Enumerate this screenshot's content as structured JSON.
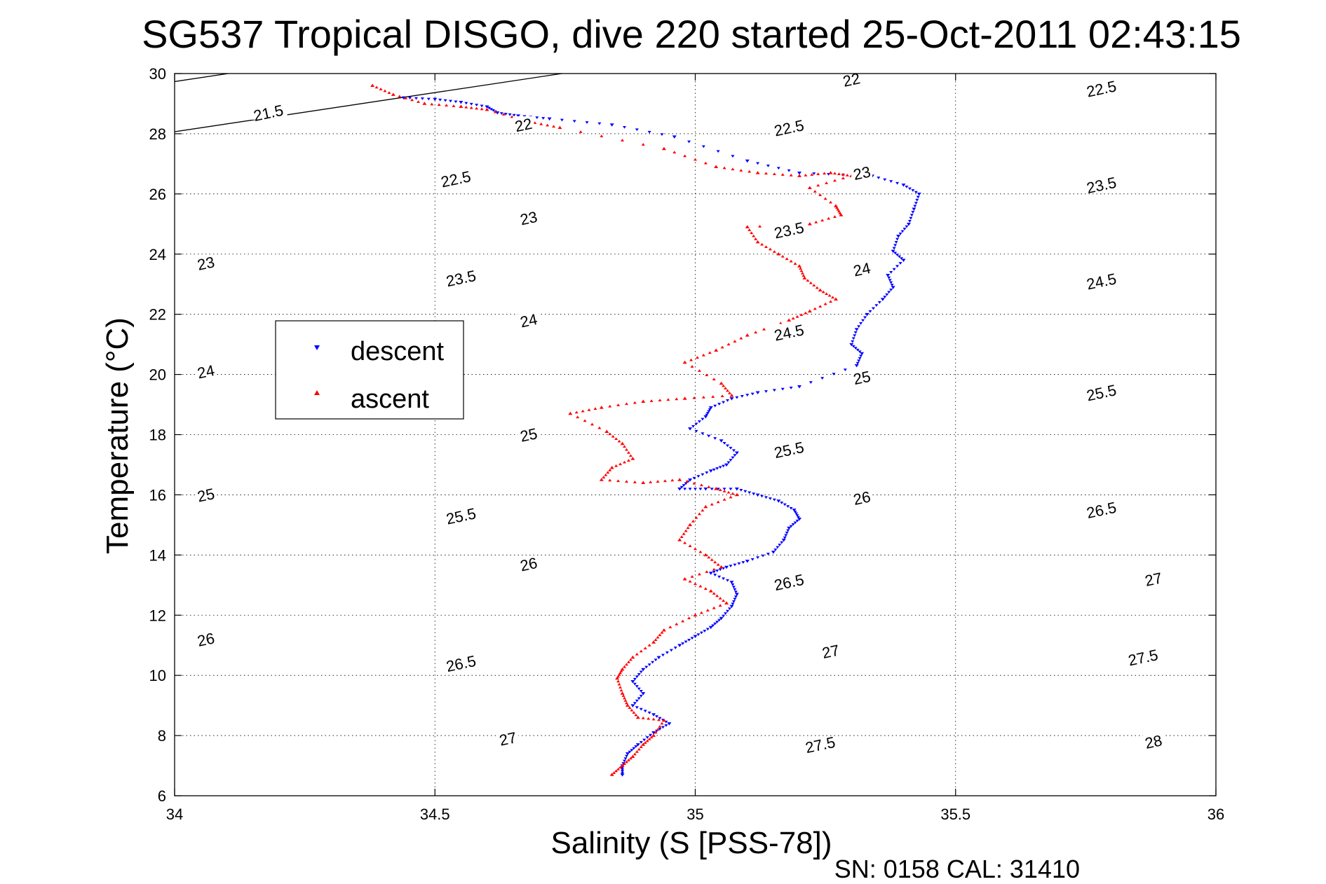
{
  "chart_data": {
    "type": "scatter",
    "title": "SG537 Tropical DISGO, dive 220 started 25-Oct-2011 02:43:15",
    "xlabel": "Salinity (S [PSS-78])",
    "ylabel": "Temperature (°C)",
    "xlim": [
      34,
      36
    ],
    "ylim": [
      6,
      30
    ],
    "xticks": [
      "34",
      "34.5",
      "35",
      "35.5",
      "36"
    ],
    "yticks": [
      "6",
      "8",
      "10",
      "12",
      "14",
      "16",
      "18",
      "20",
      "22",
      "24",
      "26",
      "28",
      "30"
    ],
    "grid": true,
    "legend": {
      "placement": "upper-left",
      "entries": [
        "descent",
        "ascent"
      ]
    },
    "footer": "SN: 0158  CAL: 31410",
    "colors": {
      "descent": "#0000ff",
      "ascent": "#ff0000",
      "contour": "#000000"
    },
    "contours": [
      {
        "sigma": 21.5,
        "labels": [
          [
            34.18,
            28.7
          ]
        ]
      },
      {
        "sigma": 22,
        "labels": [
          [
            34.67,
            28.3
          ],
          [
            35.3,
            29.8
          ]
        ]
      },
      {
        "sigma": 22.5,
        "labels": [
          [
            34.54,
            26.5
          ],
          [
            35.18,
            28.2
          ],
          [
            35.78,
            29.5
          ]
        ]
      },
      {
        "sigma": 23,
        "labels": [
          [
            34.06,
            23.7
          ],
          [
            34.68,
            25.2
          ],
          [
            35.32,
            26.7
          ]
        ]
      },
      {
        "sigma": 23.5,
        "labels": [
          [
            34.55,
            23.2
          ],
          [
            35.18,
            24.8
          ],
          [
            35.78,
            26.3
          ]
        ]
      },
      {
        "sigma": 24,
        "labels": [
          [
            34.06,
            20.1
          ],
          [
            34.68,
            21.8
          ],
          [
            35.32,
            23.5
          ]
        ]
      },
      {
        "sigma": 24.5,
        "labels": [
          [
            35.18,
            21.4
          ],
          [
            35.78,
            23.1
          ]
        ]
      },
      {
        "sigma": 25,
        "labels": [
          [
            34.06,
            16.0
          ],
          [
            34.68,
            18.0
          ],
          [
            35.32,
            19.9
          ]
        ]
      },
      {
        "sigma": 25.5,
        "labels": [
          [
            34.55,
            15.3
          ],
          [
            35.18,
            17.5
          ],
          [
            35.78,
            19.4
          ]
        ]
      },
      {
        "sigma": 26,
        "labels": [
          [
            34.06,
            11.2
          ],
          [
            34.68,
            13.7
          ],
          [
            35.32,
            15.9
          ]
        ]
      },
      {
        "sigma": 26.5,
        "labels": [
          [
            34.55,
            10.4
          ],
          [
            35.18,
            13.1
          ],
          [
            35.78,
            15.5
          ]
        ]
      },
      {
        "sigma": 27,
        "labels": [
          [
            34.64,
            7.9
          ],
          [
            35.26,
            10.8
          ],
          [
            35.88,
            13.2
          ]
        ]
      },
      {
        "sigma": 27.5,
        "labels": [
          [
            35.24,
            7.7
          ],
          [
            35.86,
            10.6
          ]
        ]
      },
      {
        "sigma": 28,
        "labels": [
          [
            35.88,
            7.8
          ]
        ]
      }
    ],
    "series": [
      {
        "name": "descent",
        "marker": "triangle-down",
        "points": [
          [
            34.44,
            29.2
          ],
          [
            34.5,
            29.15
          ],
          [
            34.55,
            29.05
          ],
          [
            34.6,
            28.9
          ],
          [
            34.62,
            28.7
          ],
          [
            34.66,
            28.6
          ],
          [
            34.72,
            28.5
          ],
          [
            34.84,
            28.3
          ],
          [
            34.96,
            27.9
          ],
          [
            35.1,
            27.1
          ],
          [
            35.2,
            26.7
          ],
          [
            35.34,
            26.6
          ],
          [
            35.4,
            26.3
          ],
          [
            35.43,
            26.0
          ],
          [
            35.42,
            25.5
          ],
          [
            35.41,
            25.0
          ],
          [
            35.39,
            24.6
          ],
          [
            35.38,
            24.1
          ],
          [
            35.4,
            23.8
          ],
          [
            35.37,
            23.3
          ],
          [
            35.38,
            22.9
          ],
          [
            35.36,
            22.5
          ],
          [
            35.33,
            22.0
          ],
          [
            35.31,
            21.5
          ],
          [
            35.3,
            21.0
          ],
          [
            35.32,
            20.7
          ],
          [
            35.31,
            20.3
          ],
          [
            35.2,
            19.6
          ],
          [
            35.12,
            19.4
          ],
          [
            35.07,
            19.2
          ],
          [
            35.03,
            18.9
          ],
          [
            35.02,
            18.6
          ],
          [
            34.99,
            18.2
          ],
          [
            35.05,
            17.8
          ],
          [
            35.08,
            17.4
          ],
          [
            35.06,
            17.0
          ],
          [
            35.03,
            16.8
          ],
          [
            34.99,
            16.5
          ],
          [
            34.97,
            16.2
          ],
          [
            35.02,
            16.2
          ],
          [
            35.08,
            16.2
          ],
          [
            35.12,
            16.0
          ],
          [
            35.16,
            15.8
          ],
          [
            35.19,
            15.5
          ],
          [
            35.2,
            15.2
          ],
          [
            35.18,
            14.9
          ],
          [
            35.17,
            14.5
          ],
          [
            35.15,
            14.1
          ],
          [
            35.1,
            13.8
          ],
          [
            35.06,
            13.6
          ],
          [
            35.03,
            13.4
          ],
          [
            35.07,
            13.1
          ],
          [
            35.08,
            12.7
          ],
          [
            35.07,
            12.3
          ],
          [
            35.05,
            11.9
          ],
          [
            35.03,
            11.6
          ],
          [
            35.0,
            11.3
          ],
          [
            34.97,
            11.0
          ],
          [
            34.93,
            10.6
          ],
          [
            34.9,
            10.2
          ],
          [
            34.88,
            9.8
          ],
          [
            34.9,
            9.4
          ],
          [
            34.88,
            9.0
          ],
          [
            34.92,
            8.7
          ],
          [
            34.95,
            8.4
          ],
          [
            34.92,
            8.1
          ],
          [
            34.89,
            7.7
          ],
          [
            34.87,
            7.4
          ],
          [
            34.86,
            7.0
          ],
          [
            34.86,
            6.7
          ]
        ]
      },
      {
        "name": "ascent",
        "marker": "triangle-up",
        "points": [
          [
            34.38,
            29.6
          ],
          [
            34.42,
            29.3
          ],
          [
            34.48,
            29.0
          ],
          [
            34.55,
            28.9
          ],
          [
            34.6,
            28.8
          ],
          [
            34.68,
            28.4
          ],
          [
            34.74,
            28.2
          ],
          [
            34.94,
            27.5
          ],
          [
            35.04,
            26.9
          ],
          [
            35.12,
            26.7
          ],
          [
            35.2,
            26.6
          ],
          [
            35.26,
            26.7
          ],
          [
            35.3,
            26.6
          ],
          [
            35.22,
            26.2
          ],
          [
            35.27,
            25.6
          ],
          [
            35.28,
            25.3
          ],
          [
            35.22,
            25.0
          ],
          [
            35.1,
            24.9
          ],
          [
            35.12,
            24.4
          ],
          [
            35.16,
            24.0
          ],
          [
            35.2,
            23.6
          ],
          [
            35.21,
            23.2
          ],
          [
            35.24,
            22.8
          ],
          [
            35.27,
            22.5
          ],
          [
            35.22,
            22.1
          ],
          [
            35.18,
            21.8
          ],
          [
            35.1,
            21.3
          ],
          [
            35.04,
            20.8
          ],
          [
            34.98,
            20.4
          ],
          [
            35.05,
            19.7
          ],
          [
            35.07,
            19.3
          ],
          [
            34.98,
            19.2
          ],
          [
            34.9,
            19.1
          ],
          [
            34.82,
            18.9
          ],
          [
            34.76,
            18.7
          ],
          [
            34.83,
            18.1
          ],
          [
            34.86,
            17.7
          ],
          [
            34.88,
            17.2
          ],
          [
            34.84,
            16.9
          ],
          [
            34.82,
            16.5
          ],
          [
            34.9,
            16.4
          ],
          [
            34.97,
            16.5
          ],
          [
            35.04,
            16.2
          ],
          [
            35.08,
            16.0
          ],
          [
            35.02,
            15.6
          ],
          [
            34.99,
            15.0
          ],
          [
            34.97,
            14.5
          ],
          [
            35.02,
            14.0
          ],
          [
            35.05,
            13.6
          ],
          [
            34.98,
            13.2
          ],
          [
            35.03,
            12.8
          ],
          [
            35.06,
            12.4
          ],
          [
            35.0,
            12.0
          ],
          [
            34.94,
            11.5
          ],
          [
            34.92,
            11.1
          ],
          [
            34.88,
            10.6
          ],
          [
            34.86,
            10.2
          ],
          [
            34.85,
            9.9
          ],
          [
            34.86,
            9.4
          ],
          [
            34.87,
            9.0
          ],
          [
            34.89,
            8.6
          ],
          [
            34.94,
            8.5
          ],
          [
            34.92,
            8.0
          ],
          [
            34.9,
            7.7
          ],
          [
            34.88,
            7.3
          ],
          [
            34.86,
            7.0
          ],
          [
            34.84,
            6.7
          ]
        ]
      }
    ]
  }
}
